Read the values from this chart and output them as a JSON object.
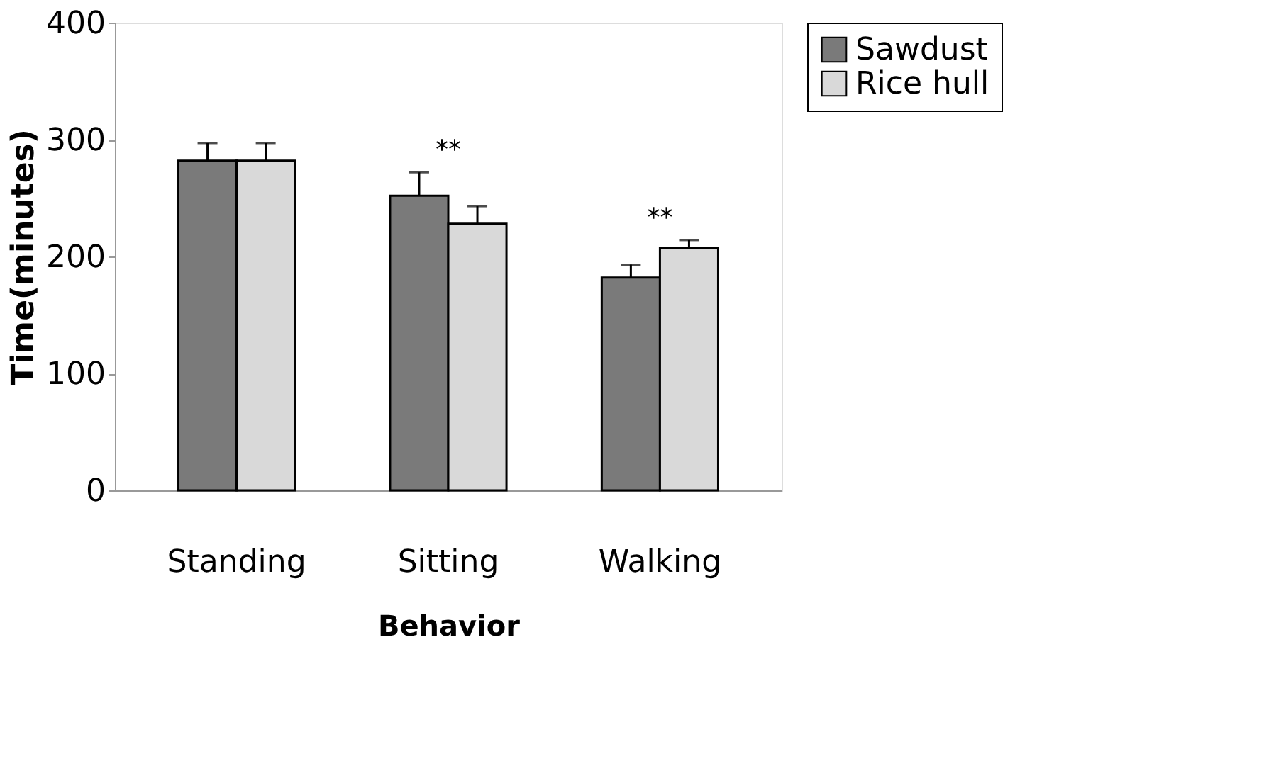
{
  "chart_data": {
    "type": "bar",
    "xlabel": "Behavior",
    "ylabel": "Time(minutes)",
    "categories": [
      "Standing",
      "Sitting",
      "Walking"
    ],
    "series": [
      {
        "name": "Sawdust",
        "color": "#7a7a7a",
        "values": [
          282,
          252,
          182
        ],
        "errors": [
          15,
          20,
          11
        ]
      },
      {
        "name": "Rice hull",
        "color": "#d9d9d9",
        "values": [
          282,
          228,
          207
        ],
        "errors": [
          15,
          15,
          7
        ]
      }
    ],
    "ylim": [
      0,
      400
    ],
    "yticks": [
      0,
      100,
      200,
      300,
      400
    ],
    "grid": false,
    "legend": "right",
    "annotations": [
      "**",
      "**"
    ]
  }
}
